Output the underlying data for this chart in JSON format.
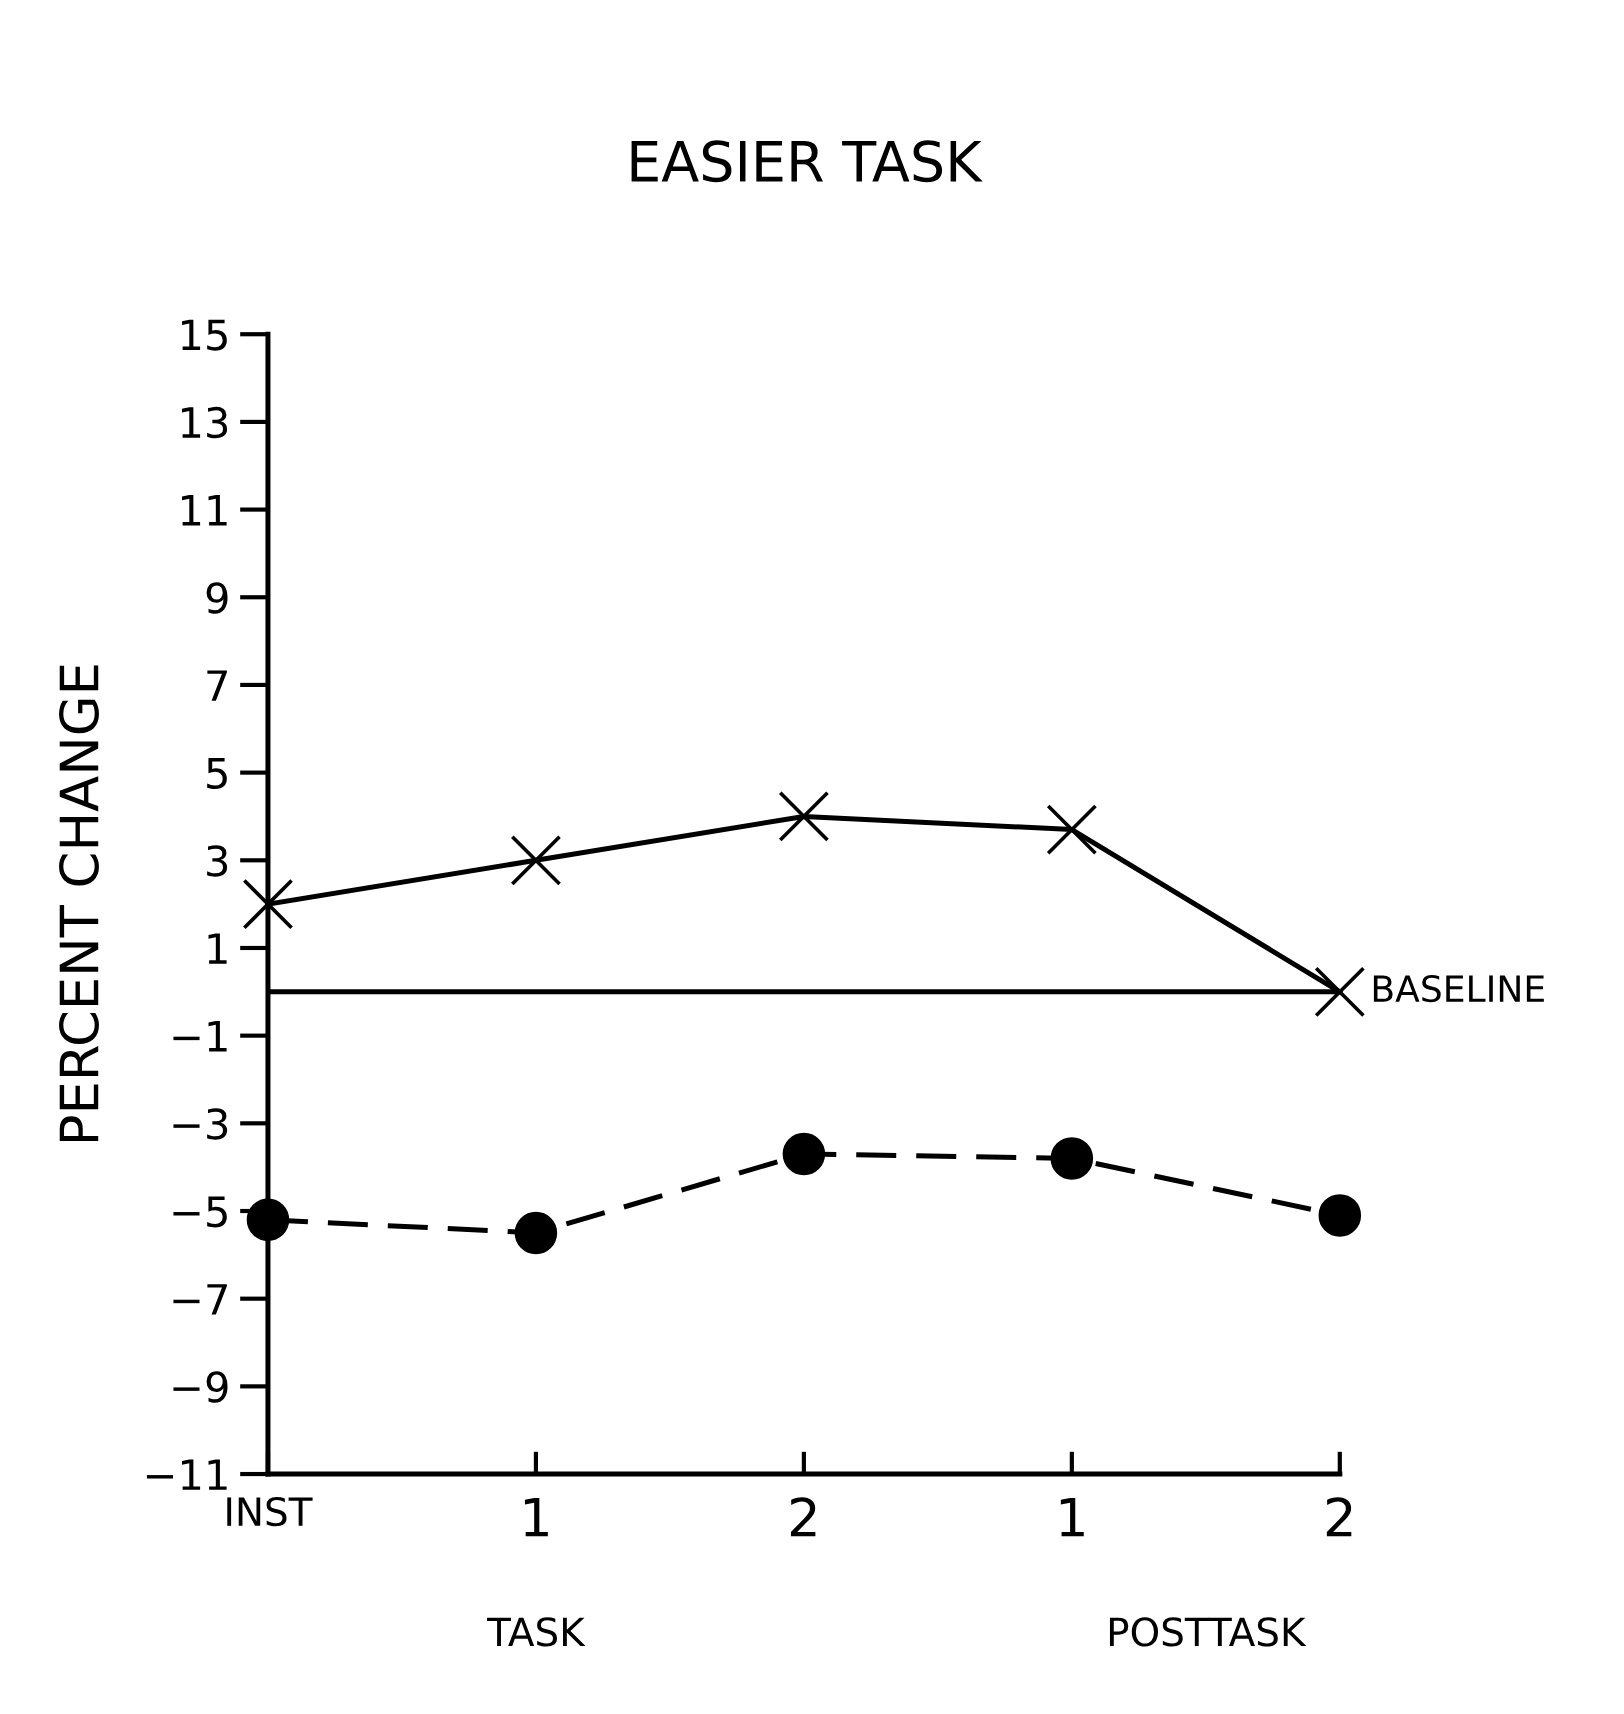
{
  "chart_data": {
    "type": "line",
    "title": "EASIER TASK",
    "ylabel": "PERCENT CHANGE",
    "categories": [
      "INST",
      "1",
      "2",
      "1",
      "2"
    ],
    "series": [
      {
        "color": "#000000",
        "marker": "cross",
        "line_style": "solid",
        "values": [
          2.0,
          3.0,
          4.0,
          3.7,
          0.0
        ]
      },
      {
        "color": "#000000",
        "marker": "circle",
        "line_style": "dashed",
        "values": [
          -5.2,
          -5.5,
          -3.7,
          -3.8,
          -5.1
        ]
      }
    ],
    "ylim": [
      -11,
      15
    ],
    "yticks": [
      {
        "value": -11,
        "label": "−11"
      },
      {
        "value": -9,
        "label": "−9"
      },
      {
        "value": -7,
        "label": "−7"
      },
      {
        "value": -5,
        "label": "−5"
      },
      {
        "value": -3,
        "label": "−3"
      },
      {
        "value": -1,
        "label": "−1"
      },
      1,
      3,
      5,
      7,
      9,
      11,
      13,
      15
    ],
    "ref_lines": [
      {
        "axis": "y",
        "value": 0,
        "label": "BASELINE",
        "color": "#000000"
      }
    ],
    "annotations": [
      "TASK",
      "POSTTASK"
    ],
    "grid": false,
    "legend": false
  }
}
